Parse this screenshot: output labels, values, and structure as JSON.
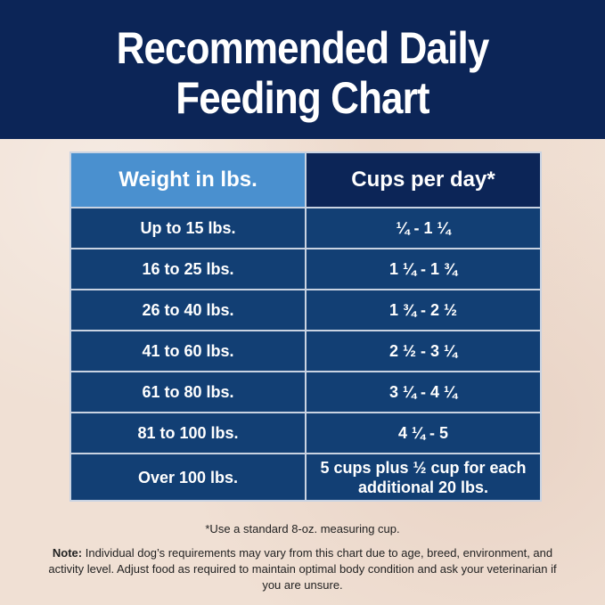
{
  "header": {
    "title_line1": "Recommended Daily",
    "title_line2": "Feeding Chart"
  },
  "table": {
    "headers": {
      "weight": "Weight in lbs.",
      "cups": "Cups per day*"
    },
    "rows": [
      {
        "weight": "Up to 15 lbs.",
        "cups": "¼ - 1 ¼"
      },
      {
        "weight": "16 to 25 lbs.",
        "cups": "1 ¼ - 1 ¾"
      },
      {
        "weight": "26 to 40 lbs.",
        "cups": "1 ¾ - 2 ½"
      },
      {
        "weight": "41 to 60 lbs.",
        "cups": "2 ½ - 3 ¼"
      },
      {
        "weight": "61 to 80 lbs.",
        "cups": "3 ¼ - 4 ¼"
      },
      {
        "weight": "81 to 100 lbs.",
        "cups": "4 ¼ - 5"
      },
      {
        "weight": "Over 100 lbs.",
        "cups_line1": "5 cups plus ½ cup for each",
        "cups_line2": "additional 20 lbs."
      }
    ]
  },
  "footnote": "*Use a standard 8-oz. measuring cup.",
  "note": {
    "label": "Note:",
    "text": "Individual dog’s requirements may vary from this chart due to age, breed, environment, and activity level. Adjust food as required to maintain optimal body condition and ask your veterinarian if you are unsure."
  },
  "colors": {
    "header_navy": "#0c2557",
    "weight_header_blue": "#4a90cf",
    "row_blue": "#123f74",
    "background_marble": "#f0e0d4"
  }
}
